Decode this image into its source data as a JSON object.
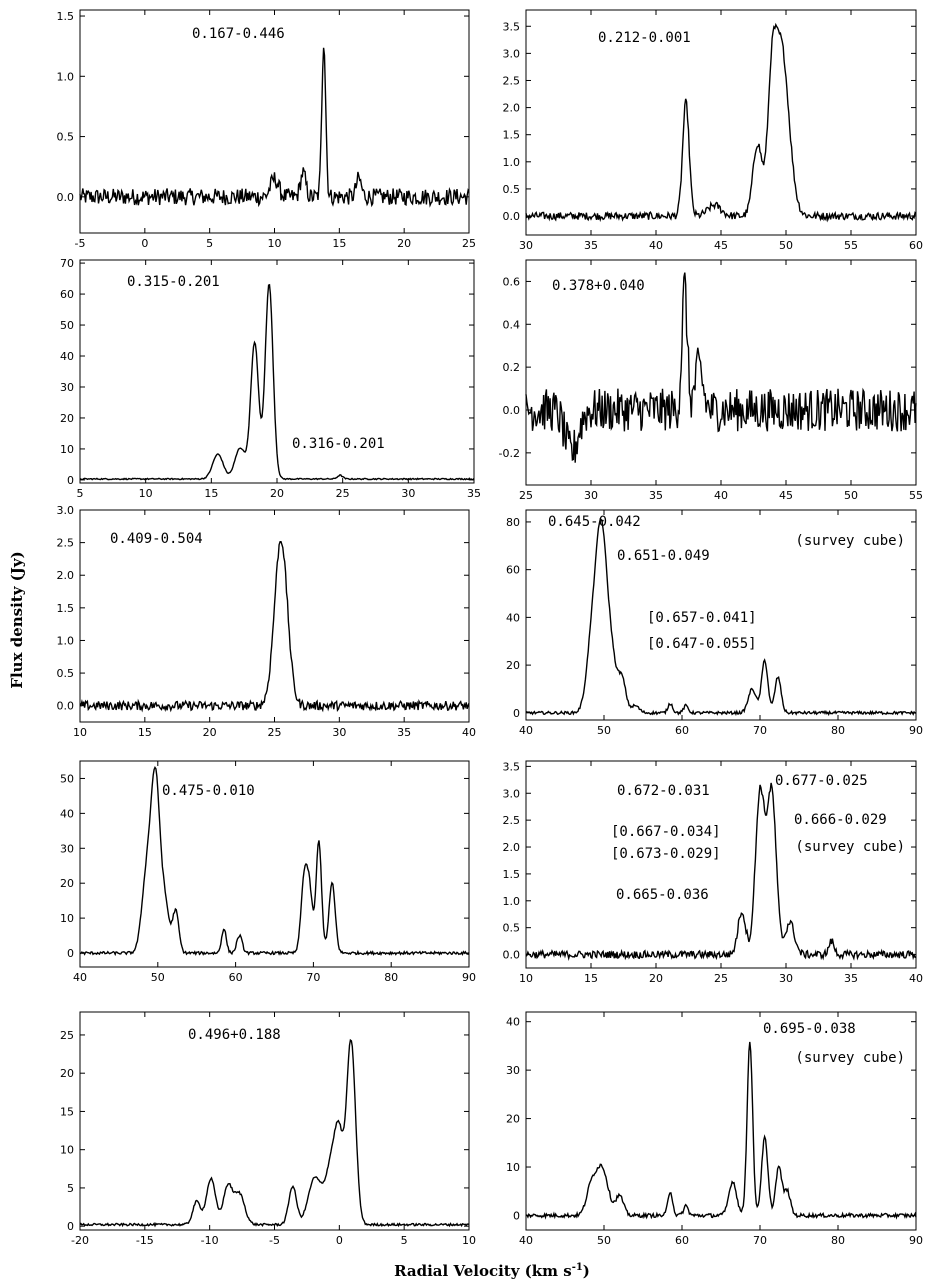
{
  "figure": {
    "xlabel": "Radial Velocity (km s",
    "xlabel_sup": "-1",
    "xlabel_close": ")",
    "ylabel": "Flux density (Jy)"
  },
  "chart_data": [
    {
      "type": "line",
      "xlim": [
        -5,
        25
      ],
      "ylim": [
        -0.3,
        1.55
      ],
      "xticks": [
        -5,
        0,
        5,
        10,
        15,
        20,
        25
      ],
      "yticks": [
        0.0,
        0.5,
        1.0,
        1.5
      ],
      "ytick_labels": [
        "0.0",
        "0.5",
        "1.0",
        "1.5"
      ],
      "annotations": [
        "0.167-0.446"
      ],
      "baseline": 0.0,
      "noise": 0.07,
      "components": [
        [
          13.8,
          1.3,
          0.15
        ],
        [
          12.2,
          0.2,
          0.2
        ],
        [
          16.5,
          0.15,
          0.2
        ],
        [
          10.0,
          0.15,
          0.3
        ]
      ]
    },
    {
      "type": "line",
      "xlim": [
        30,
        60
      ],
      "ylim": [
        -0.35,
        3.8
      ],
      "xticks": [
        30,
        35,
        40,
        45,
        50,
        55,
        60
      ],
      "yticks": [
        0.0,
        0.5,
        1.0,
        1.5,
        2.0,
        2.5,
        3.0,
        3.5
      ],
      "ytick_labels": [
        "0.0",
        "0.5",
        "1.0",
        "1.5",
        "2.0",
        "2.5",
        "3.0",
        "3.5"
      ],
      "annotations": [
        "0.212-0.001"
      ],
      "baseline": 0.0,
      "noise": 0.07,
      "components": [
        [
          42.3,
          2.1,
          0.25
        ],
        [
          47.8,
          1.3,
          0.35
        ],
        [
          49.6,
          3.2,
          0.6
        ],
        [
          48.9,
          1.5,
          0.3
        ],
        [
          44.5,
          0.2,
          0.5
        ]
      ]
    },
    {
      "type": "line",
      "xlim": [
        5,
        35
      ],
      "ylim": [
        -1,
        71
      ],
      "xticks": [
        5,
        10,
        15,
        20,
        25,
        30,
        35
      ],
      "yticks": [
        0,
        10,
        20,
        30,
        40,
        50,
        60,
        70
      ],
      "ytick_labels": [
        "0",
        "10",
        "20",
        "30",
        "40",
        "50",
        "60",
        "70"
      ],
      "annotations": [
        "0.315-0.201",
        "0.316-0.201"
      ],
      "baseline": 0.3,
      "noise": 0.2,
      "components": [
        [
          19.4,
          63,
          0.3
        ],
        [
          18.3,
          44,
          0.3
        ],
        [
          17.2,
          10,
          0.4
        ],
        [
          15.5,
          8,
          0.4
        ],
        [
          24.8,
          1.2,
          0.2
        ]
      ]
    },
    {
      "type": "line",
      "xlim": [
        25,
        55
      ],
      "ylim": [
        -0.35,
        0.7
      ],
      "xticks": [
        25,
        30,
        35,
        40,
        45,
        50,
        55
      ],
      "yticks": [
        -0.2,
        0.0,
        0.2,
        0.4,
        0.6
      ],
      "ytick_labels": [
        "-0.2",
        "0.0",
        "0.2",
        "0.4",
        "0.6"
      ],
      "annotations": [
        "0.378+0.040"
      ],
      "baseline": 0.0,
      "noise": 0.1,
      "components": [
        [
          37.2,
          0.58,
          0.2
        ],
        [
          38.3,
          0.2,
          0.3
        ],
        [
          28.5,
          -0.2,
          0.5
        ]
      ]
    },
    {
      "type": "line",
      "xlim": [
        10,
        40
      ],
      "ylim": [
        -0.25,
        3.0
      ],
      "xticks": [
        10,
        15,
        20,
        25,
        30,
        35,
        40
      ],
      "yticks": [
        0.0,
        0.5,
        1.0,
        1.5,
        2.0,
        2.5,
        3.0
      ],
      "ytick_labels": [
        "0.0",
        "0.5",
        "1.0",
        "1.5",
        "2.0",
        "2.5",
        "3.0"
      ],
      "annotations": [
        "0.409-0.504"
      ],
      "baseline": 0.0,
      "noise": 0.07,
      "components": [
        [
          25.5,
          2.55,
          0.5
        ]
      ]
    },
    {
      "type": "line",
      "xlim": [
        40,
        90
      ],
      "ylim": [
        -3,
        85
      ],
      "xticks": [
        40,
        50,
        60,
        70,
        80,
        90
      ],
      "yticks": [
        0,
        20,
        40,
        60,
        80
      ],
      "ytick_labels": [
        "0",
        "20",
        "40",
        "60",
        "80"
      ],
      "annotations": [
        "0.645-0.042",
        "(survey cube)",
        "0.651-0.049",
        "[0.657-0.041]",
        "[0.647-0.055]"
      ],
      "baseline": 0.0,
      "noise": 0.6,
      "components": [
        [
          49.7,
          72,
          0.7
        ],
        [
          48.5,
          30,
          0.7
        ],
        [
          51.0,
          20,
          0.6
        ],
        [
          52.3,
          14,
          0.5
        ],
        [
          54.0,
          3,
          0.5
        ],
        [
          58.5,
          4,
          0.3
        ],
        [
          60.5,
          3,
          0.3
        ],
        [
          69.0,
          10,
          0.5
        ],
        [
          70.6,
          22,
          0.4
        ],
        [
          72.3,
          15,
          0.4
        ]
      ]
    },
    {
      "type": "line",
      "xlim": [
        40,
        90
      ],
      "ylim": [
        -4,
        55
      ],
      "xticks": [
        40,
        50,
        60,
        70,
        80,
        90
      ],
      "yticks": [
        0,
        10,
        20,
        30,
        40,
        50
      ],
      "ytick_labels": [
        "0",
        "10",
        "20",
        "30",
        "40",
        "50"
      ],
      "annotations": [
        "0.672-0.031",
        "0.677-0.025",
        "0.666-0.029",
        "[0.667-0.034]",
        "[0.673-0.029]",
        "(survey cube)",
        "0.665-0.036"
      ],
      "baseline": 0.0,
      "noise": 0.4,
      "components": [
        [
          49.7,
          50,
          0.6
        ],
        [
          48.5,
          20,
          0.6
        ],
        [
          51.0,
          12,
          0.5
        ],
        [
          52.3,
          12,
          0.4
        ],
        [
          58.5,
          7,
          0.3
        ],
        [
          60.5,
          5,
          0.35
        ],
        [
          68.8,
          20,
          0.4
        ],
        [
          69.5,
          17,
          0.4
        ],
        [
          70.7,
          32,
          0.35
        ],
        [
          72.4,
          20,
          0.4
        ]
      ]
    },
    {
      "type": "line",
      "xlim": [
        10,
        40
      ],
      "ylim": [
        -0.25,
        3.6
      ],
      "xticks": [
        10,
        15,
        20,
        25,
        30,
        35,
        40
      ],
      "yticks": [
        0.0,
        0.5,
        1.0,
        1.5,
        2.0,
        2.5,
        3.0,
        3.5
      ],
      "ytick_labels": [
        "0.0",
        "0.5",
        "1.0",
        "1.5",
        "2.0",
        "2.5",
        "3.0",
        "3.5"
      ],
      "annotations": [
        "0.475-0.010"
      ],
      "baseline": 0.0,
      "noise": 0.07,
      "components": [
        [
          28.0,
          3.0,
          0.35
        ],
        [
          28.9,
          3.0,
          0.35
        ],
        [
          26.6,
          0.8,
          0.3
        ],
        [
          30.3,
          0.6,
          0.35
        ],
        [
          33.5,
          0.25,
          0.2
        ]
      ]
    },
    {
      "type": "line",
      "xlim": [
        -20,
        10
      ],
      "ylim": [
        -0.5,
        28
      ],
      "xticks": [
        -20,
        -15,
        -10,
        -5,
        0,
        5,
        10
      ],
      "yticks": [
        0,
        5,
        10,
        15,
        20,
        25
      ],
      "ytick_labels": [
        "0",
        "5",
        "10",
        "15",
        "20",
        "25"
      ],
      "annotations": [
        "0.496+0.188"
      ],
      "baseline": 0.2,
      "noise": 0.15,
      "components": [
        [
          0.9,
          24,
          0.35
        ],
        [
          -0.5,
          9,
          0.5
        ],
        [
          -1.9,
          6,
          0.5
        ],
        [
          -3.6,
          5,
          0.3
        ],
        [
          -7.7,
          4,
          0.4
        ],
        [
          -8.6,
          5,
          0.35
        ],
        [
          -9.9,
          6,
          0.35
        ],
        [
          -11.0,
          3,
          0.3
        ],
        [
          0.0,
          7,
          0.3
        ]
      ]
    },
    {
      "type": "line",
      "xlim": [
        40,
        90
      ],
      "ylim": [
        -3,
        42
      ],
      "xticks": [
        40,
        50,
        60,
        70,
        80,
        90
      ],
      "yticks": [
        0,
        10,
        20,
        30,
        40
      ],
      "ytick_labels": [
        "0",
        "10",
        "20",
        "30",
        "40"
      ],
      "annotations": [
        "0.695-0.038",
        "(survey cube)"
      ],
      "baseline": 0.0,
      "noise": 0.4,
      "components": [
        [
          49.7,
          10,
          0.8
        ],
        [
          48.3,
          5,
          0.6
        ],
        [
          52.0,
          4,
          0.5
        ],
        [
          58.5,
          5,
          0.3
        ],
        [
          60.5,
          2,
          0.3
        ],
        [
          66.5,
          7,
          0.5
        ],
        [
          68.7,
          36,
          0.35
        ],
        [
          70.6,
          16,
          0.4
        ],
        [
          72.4,
          10,
          0.4
        ],
        [
          73.5,
          5,
          0.4
        ]
      ]
    }
  ]
}
